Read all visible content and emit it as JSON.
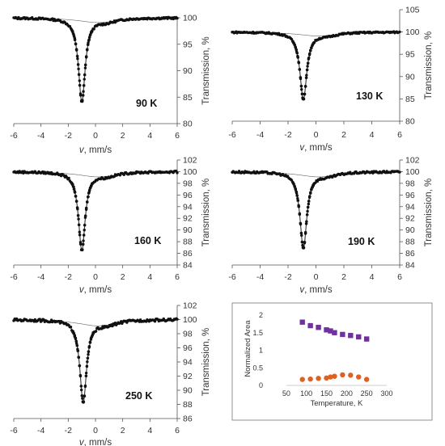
{
  "chart_data": [
    {
      "type": "scatter",
      "label": "90 K",
      "xlabel_var": "v",
      "xlabel_unit": ", mm/s",
      "ylabel": "Transmission, %",
      "xlim": [
        -6,
        6
      ],
      "ylim": [
        80,
        100
      ],
      "xticks": [
        -6,
        -4,
        -2,
        0,
        2,
        4,
        6
      ],
      "yticks": [
        80,
        85,
        90,
        95,
        100
      ],
      "dip_center": -1.0,
      "dip_min": 84.2,
      "dip_width": 0.3
    },
    {
      "type": "scatter",
      "label": "130 K",
      "xlabel_var": "v",
      "xlabel_unit": ", mm/s",
      "ylabel": "Transmission, %",
      "xlim": [
        -6,
        6
      ],
      "ylim": [
        80,
        105
      ],
      "xticks": [
        -6,
        -4,
        -2,
        0,
        2,
        4,
        6
      ],
      "yticks": [
        80,
        85,
        90,
        95,
        100,
        105
      ],
      "dip_center": -0.9,
      "dip_min": 85.0,
      "dip_width": 0.3
    },
    {
      "type": "scatter",
      "label": "160 K",
      "xlabel_var": "v",
      "xlabel_unit": ", mm/s",
      "ylabel": "Transmission, %",
      "xlim": [
        -6,
        6
      ],
      "ylim": [
        84,
        102
      ],
      "xticks": [
        -6,
        -4,
        -2,
        0,
        2,
        4,
        6
      ],
      "yticks": [
        84,
        86,
        88,
        90,
        92,
        94,
        96,
        98,
        100,
        102
      ],
      "dip_center": -1.0,
      "dip_min": 86.6,
      "dip_width": 0.3
    },
    {
      "type": "scatter",
      "label": "190 K",
      "xlabel_var": "v",
      "xlabel_unit": ", mm/s",
      "ylabel": "Transmission, %",
      "xlim": [
        -6,
        6
      ],
      "ylim": [
        84,
        102
      ],
      "xticks": [
        -6,
        -4,
        -2,
        0,
        2,
        4,
        6
      ],
      "yticks": [
        84,
        86,
        88,
        90,
        92,
        94,
        96,
        98,
        100,
        102
      ],
      "dip_center": -0.9,
      "dip_min": 87.0,
      "dip_width": 0.3
    },
    {
      "type": "scatter",
      "label": "250 K",
      "xlabel_var": "v",
      "xlabel_unit": ", mm/s",
      "ylabel": "Transmission, %",
      "xlim": [
        -6,
        6
      ],
      "ylim": [
        86,
        102
      ],
      "xticks": [
        -6,
        -4,
        -2,
        0,
        2,
        4,
        6
      ],
      "yticks": [
        86,
        88,
        90,
        92,
        94,
        96,
        98,
        100,
        102
      ],
      "dip_center": -0.9,
      "dip_min": 88.4,
      "dip_width": 0.3
    },
    {
      "type": "scatter",
      "xlabel": "Temperature, K",
      "ylabel": "Normalized Area",
      "xlim": [
        0,
        300
      ],
      "ylim": [
        0,
        2
      ],
      "xticks": [
        50,
        100,
        150,
        200,
        250,
        300
      ],
      "yticks": [
        0,
        0.5,
        1,
        1.5,
        2
      ],
      "series": [
        {
          "color": "#7030a0",
          "marker": "square",
          "x": [
            90,
            110,
            130,
            150,
            160,
            170,
            190,
            210,
            230,
            250
          ],
          "y": [
            1.8,
            1.7,
            1.65,
            1.58,
            1.55,
            1.5,
            1.45,
            1.42,
            1.38,
            1.32
          ]
        },
        {
          "color": "#e06020",
          "marker": "circle",
          "x": [
            90,
            110,
            130,
            150,
            160,
            170,
            190,
            210,
            230,
            250
          ],
          "y": [
            0.17,
            0.18,
            0.2,
            0.21,
            0.24,
            0.26,
            0.3,
            0.29,
            0.24,
            0.17
          ]
        }
      ]
    }
  ]
}
